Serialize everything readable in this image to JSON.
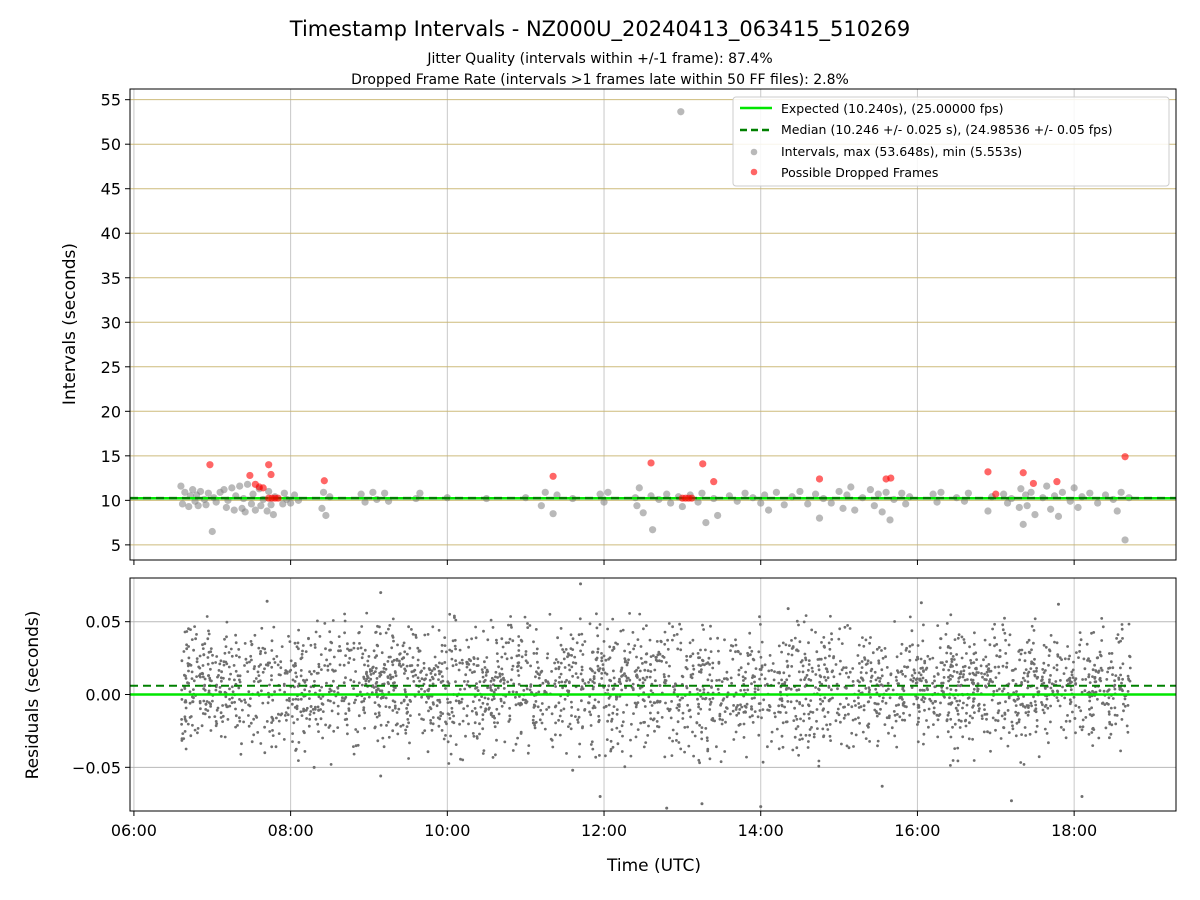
{
  "figure": {
    "title": "Timestamp Intervals - NZ000U_20240413_063415_510269",
    "subtitle_1": "Jitter Quality (intervals within +/-1 frame): 87.4%",
    "subtitle_2": "Dropped Frame Rate (intervals >1 frames late within 50 FF files): 2.8%"
  },
  "colors": {
    "expected": "#00e600",
    "median": "#008000",
    "intervals": "#808080",
    "dropped": "#ff0000",
    "hgrid_top": "#c8b46e",
    "grid": "#b0b0b0"
  },
  "chart_data": [
    {
      "type": "scatter",
      "xlabel": "",
      "ylabel": "Intervals (seconds)",
      "xlim": [
        5.95,
        19.3
      ],
      "ylim": [
        3.3,
        56.2
      ],
      "yticks": [
        5,
        10,
        15,
        20,
        25,
        30,
        35,
        40,
        45,
        50,
        55
      ],
      "ytick_labels": [
        "5",
        "10",
        "15",
        "20",
        "25",
        "30",
        "35",
        "40",
        "45",
        "50",
        "55"
      ],
      "xticks": [
        6,
        8,
        10,
        12,
        14,
        16,
        18
      ],
      "grid": true,
      "legend_position": "upper-right",
      "legend": [
        "Expected (10.240s), (25.00000 fps)",
        "Median (10.246 +/- 0.025 s), (24.98536 +/- 0.05 fps)",
        "Intervals, max (53.648s), min (5.553s)",
        "Possible Dropped Frames"
      ],
      "expected_line": 10.24,
      "median_line": 10.246,
      "intervals": [
        [
          6.6,
          11.6
        ],
        [
          6.62,
          9.6
        ],
        [
          6.65,
          10.9
        ],
        [
          6.7,
          9.3
        ],
        [
          6.72,
          10.5
        ],
        [
          6.75,
          11.2
        ],
        [
          6.78,
          9.9
        ],
        [
          6.8,
          10.6
        ],
        [
          6.82,
          9.4
        ],
        [
          6.85,
          11.0
        ],
        [
          6.9,
          10.1
        ],
        [
          6.92,
          9.5
        ],
        [
          6.95,
          10.8
        ],
        [
          7.0,
          6.5
        ],
        [
          7.02,
          10.3
        ],
        [
          7.05,
          9.8
        ],
        [
          7.1,
          10.9
        ],
        [
          7.15,
          11.2
        ],
        [
          7.18,
          9.2
        ],
        [
          7.2,
          10.0
        ],
        [
          7.25,
          11.4
        ],
        [
          7.28,
          8.9
        ],
        [
          7.3,
          10.5
        ],
        [
          7.35,
          11.6
        ],
        [
          7.38,
          9.1
        ],
        [
          7.4,
          10.2
        ],
        [
          7.42,
          8.7
        ],
        [
          7.45,
          11.8
        ],
        [
          7.5,
          9.6
        ],
        [
          7.52,
          10.7
        ],
        [
          7.55,
          8.9
        ],
        [
          7.6,
          11.3
        ],
        [
          7.62,
          9.4
        ],
        [
          7.65,
          10.1
        ],
        [
          7.7,
          8.8
        ],
        [
          7.72,
          11.0
        ],
        [
          7.75,
          9.5
        ],
        [
          7.78,
          8.4
        ],
        [
          7.8,
          10.4
        ],
        [
          7.9,
          9.6
        ],
        [
          7.92,
          10.8
        ],
        [
          7.95,
          10.1
        ],
        [
          8.0,
          9.7
        ],
        [
          8.05,
          10.6
        ],
        [
          8.1,
          10.0
        ],
        [
          8.4,
          9.1
        ],
        [
          8.42,
          10.9
        ],
        [
          8.45,
          8.3
        ],
        [
          8.5,
          10.4
        ],
        [
          8.9,
          10.7
        ],
        [
          8.95,
          9.8
        ],
        [
          9.05,
          10.9
        ],
        [
          9.1,
          10.1
        ],
        [
          9.2,
          10.8
        ],
        [
          9.25,
          9.9
        ],
        [
          9.6,
          10.2
        ],
        [
          9.65,
          10.8
        ],
        [
          10.0,
          10.3
        ],
        [
          10.5,
          10.2
        ],
        [
          11.0,
          10.3
        ],
        [
          11.2,
          9.4
        ],
        [
          11.25,
          10.9
        ],
        [
          11.35,
          8.5
        ],
        [
          11.4,
          10.6
        ],
        [
          11.6,
          10.2
        ],
        [
          11.95,
          10.7
        ],
        [
          12.0,
          9.8
        ],
        [
          12.05,
          10.9
        ],
        [
          12.4,
          10.3
        ],
        [
          12.42,
          9.4
        ],
        [
          12.45,
          11.4
        ],
        [
          12.5,
          8.6
        ],
        [
          12.6,
          10.5
        ],
        [
          12.62,
          6.7
        ],
        [
          12.7,
          10.1
        ],
        [
          12.8,
          10.7
        ],
        [
          12.85,
          9.7
        ],
        [
          12.95,
          10.4
        ],
        [
          13.0,
          9.3
        ],
        [
          13.1,
          10.6
        ],
        [
          13.2,
          9.8
        ],
        [
          13.25,
          10.8
        ],
        [
          13.3,
          7.5
        ],
        [
          13.4,
          10.2
        ],
        [
          13.45,
          8.3
        ],
        [
          13.6,
          10.5
        ],
        [
          13.7,
          9.9
        ],
        [
          13.8,
          10.8
        ],
        [
          13.9,
          10.3
        ],
        [
          14.0,
          9.7
        ],
        [
          14.05,
          10.6
        ],
        [
          14.1,
          8.9
        ],
        [
          14.2,
          10.9
        ],
        [
          14.3,
          9.5
        ],
        [
          14.4,
          10.4
        ],
        [
          14.5,
          11.0
        ],
        [
          14.6,
          9.6
        ],
        [
          14.7,
          10.7
        ],
        [
          14.75,
          8.0
        ],
        [
          14.8,
          10.2
        ],
        [
          14.9,
          9.7
        ],
        [
          15.0,
          11.0
        ],
        [
          15.05,
          9.1
        ],
        [
          15.1,
          10.6
        ],
        [
          15.15,
          11.5
        ],
        [
          15.2,
          8.9
        ],
        [
          15.3,
          10.3
        ],
        [
          15.4,
          11.2
        ],
        [
          15.45,
          9.4
        ],
        [
          15.5,
          10.7
        ],
        [
          15.55,
          8.7
        ],
        [
          15.6,
          10.9
        ],
        [
          15.65,
          7.8
        ],
        [
          15.7,
          10.1
        ],
        [
          15.8,
          10.8
        ],
        [
          15.85,
          9.6
        ],
        [
          15.9,
          10.4
        ],
        [
          16.2,
          10.7
        ],
        [
          16.25,
          9.8
        ],
        [
          16.3,
          10.9
        ],
        [
          16.5,
          10.3
        ],
        [
          16.6,
          9.9
        ],
        [
          16.65,
          10.8
        ],
        [
          16.9,
          8.8
        ],
        [
          16.95,
          10.4
        ],
        [
          17.1,
          10.7
        ],
        [
          17.15,
          9.7
        ],
        [
          17.2,
          10.2
        ],
        [
          17.3,
          9.2
        ],
        [
          17.32,
          11.3
        ],
        [
          17.35,
          7.3
        ],
        [
          17.38,
          10.6
        ],
        [
          17.4,
          9.4
        ],
        [
          17.45,
          10.9
        ],
        [
          17.5,
          8.4
        ],
        [
          17.6,
          10.3
        ],
        [
          17.65,
          11.6
        ],
        [
          17.7,
          9.0
        ],
        [
          17.75,
          10.5
        ],
        [
          17.8,
          8.2
        ],
        [
          17.85,
          10.9
        ],
        [
          17.95,
          9.9
        ],
        [
          18.0,
          11.4
        ],
        [
          18.05,
          9.2
        ],
        [
          18.1,
          10.4
        ],
        [
          18.2,
          10.8
        ],
        [
          18.3,
          9.7
        ],
        [
          18.4,
          10.6
        ],
        [
          18.5,
          10.1
        ],
        [
          18.55,
          8.8
        ],
        [
          18.6,
          10.9
        ],
        [
          18.65,
          5.553
        ],
        [
          18.7,
          10.3
        ],
        [
          12.98,
          53.648
        ]
      ],
      "dropped": [
        [
          6.97,
          14.0
        ],
        [
          7.48,
          12.8
        ],
        [
          7.55,
          11.8
        ],
        [
          7.6,
          11.5
        ],
        [
          7.65,
          11.4
        ],
        [
          7.72,
          14.0
        ],
        [
          7.75,
          12.9
        ],
        [
          7.72,
          10.24
        ],
        [
          7.76,
          10.24
        ],
        [
          7.8,
          10.24
        ],
        [
          7.84,
          10.24
        ],
        [
          8.43,
          12.2
        ],
        [
          11.35,
          12.7
        ],
        [
          12.6,
          14.2
        ],
        [
          13.0,
          10.24
        ],
        [
          13.04,
          10.24
        ],
        [
          13.08,
          10.24
        ],
        [
          13.12,
          10.24
        ],
        [
          13.26,
          14.1
        ],
        [
          13.4,
          12.1
        ],
        [
          14.75,
          12.4
        ],
        [
          15.6,
          12.4
        ],
        [
          15.66,
          12.5
        ],
        [
          16.9,
          13.2
        ],
        [
          17.0,
          10.7
        ],
        [
          17.35,
          13.1
        ],
        [
          17.48,
          11.9
        ],
        [
          17.78,
          12.1
        ],
        [
          18.65,
          14.9
        ]
      ]
    },
    {
      "type": "scatter",
      "xlabel": "Time (UTC)",
      "ylabel": "Residuals (seconds)",
      "xlim": [
        5.95,
        19.3
      ],
      "ylim": [
        -0.08,
        0.08
      ],
      "yticks": [
        -0.05,
        0.0,
        0.05
      ],
      "ytick_labels": [
        "−0.05",
        "0.00",
        "0.05"
      ],
      "xticks": [
        6,
        8,
        10,
        12,
        14,
        16,
        18
      ],
      "xtick_labels": [
        "06:00",
        "08:00",
        "10:00",
        "12:00",
        "14:00",
        "16:00",
        "18:00"
      ],
      "grid": true,
      "expected_line": 0.0,
      "median_line": 0.006,
      "x_range": [
        6.6,
        18.72
      ],
      "n_points": 3000,
      "spread_sd": 0.021,
      "outliers": [
        [
          11.7,
          0.076
        ],
        [
          9.15,
          0.07
        ],
        [
          12.8,
          -0.078
        ],
        [
          13.25,
          -0.075
        ],
        [
          14.0,
          -0.077
        ],
        [
          11.95,
          -0.07
        ],
        [
          17.2,
          -0.073
        ],
        [
          18.1,
          -0.07
        ],
        [
          15.55,
          -0.063
        ],
        [
          7.7,
          0.064
        ],
        [
          17.8,
          0.062
        ],
        [
          16.05,
          0.063
        ],
        [
          14.35,
          0.059
        ],
        [
          8.3,
          -0.05
        ],
        [
          9.15,
          -0.056
        ],
        [
          11.6,
          -0.052
        ]
      ]
    }
  ]
}
